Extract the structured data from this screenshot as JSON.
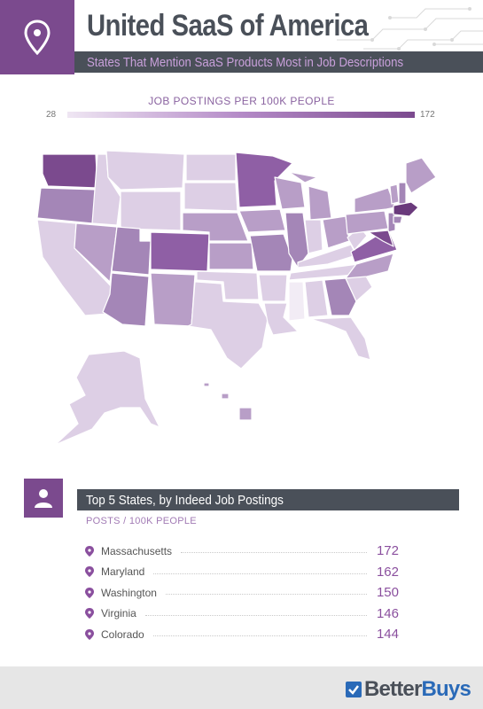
{
  "header": {
    "title": "United SaaS of America",
    "subtitle": "States That Mention SaaS Products Most in Job Descriptions",
    "icon": "map-pin-icon"
  },
  "legend": {
    "title": "JOB POSTINGS PER 100K PEOPLE",
    "min": "28",
    "max": "172",
    "color_low": "#efe6f3",
    "color_high": "#7b4a8e"
  },
  "top5": {
    "title": "Top 5 States, by Indeed Job Postings",
    "unit": "POSTS / 100K PEOPLE",
    "icon": "person-icon",
    "items": [
      {
        "state": "Massachusetts",
        "value": "172"
      },
      {
        "state": "Maryland",
        "value": "162"
      },
      {
        "state": "Washington",
        "value": "150"
      },
      {
        "state": "Virginia",
        "value": "146"
      },
      {
        "state": "Colorado",
        "value": "144"
      }
    ]
  },
  "footer": {
    "brand_prefix": "Better",
    "brand_suffix": "Buys",
    "logo_icon": "checkmark-icon"
  },
  "colors": {
    "purple_dark": "#7b4a8e",
    "slate": "#4a5059",
    "accent_text": "#c9a0db",
    "brand_blue": "#2a6ab8"
  }
}
